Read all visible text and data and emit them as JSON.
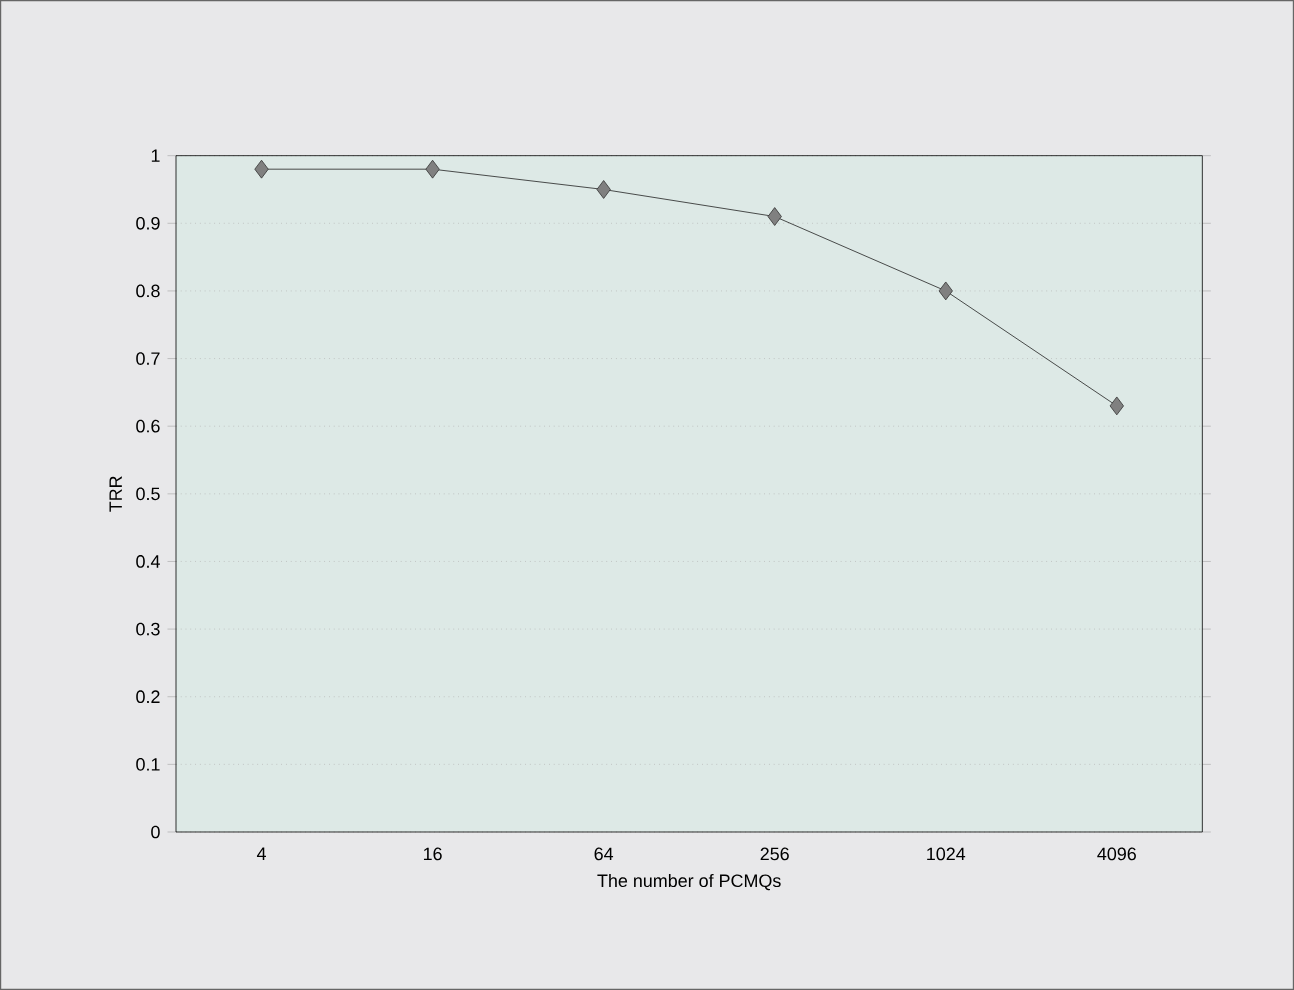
{
  "chart_data": {
    "type": "line",
    "xlabel": "The number of PCMQs",
    "ylabel": "TRR",
    "categories": [
      "4",
      "16",
      "64",
      "256",
      "1024",
      "4096"
    ],
    "series": [
      {
        "color": "#222222",
        "values": [
          0.98,
          0.98,
          0.95,
          0.91,
          0.8,
          0.63
        ]
      }
    ],
    "ylim": [
      0,
      1
    ],
    "yticks": [
      0,
      0.1,
      0.2,
      0.3,
      0.4,
      0.5,
      0.6,
      0.7,
      0.8,
      0.9,
      1
    ],
    "grid": "y",
    "marker": "diamond",
    "line_style": "solid"
  }
}
